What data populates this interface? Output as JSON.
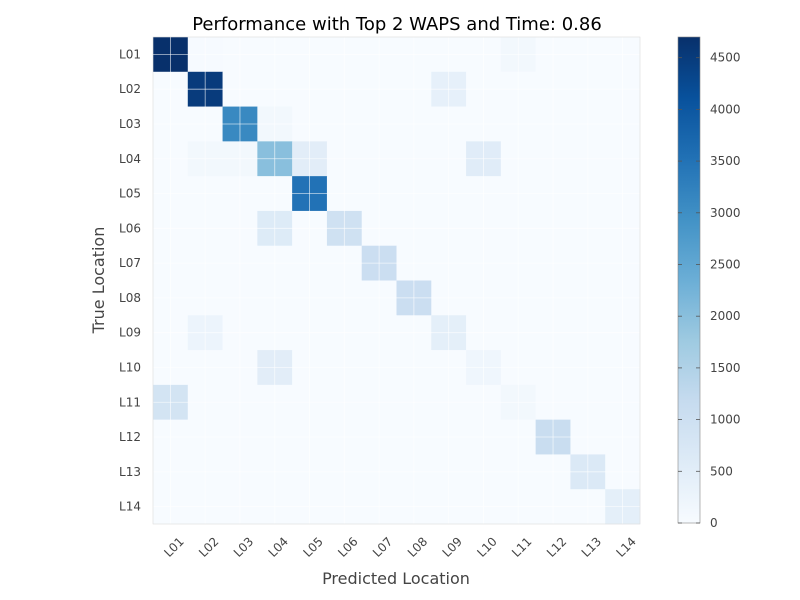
{
  "chart_data": {
    "type": "heatmap",
    "title": "Performance with Top 2 WAPS and Time: 0.86",
    "xlabel": "Predicted Location",
    "ylabel": "True Location",
    "x_categories": [
      "L01",
      "L02",
      "L03",
      "L04",
      "L05",
      "L06",
      "L07",
      "L08",
      "L09",
      "L10",
      "L11",
      "L12",
      "L13",
      "L14"
    ],
    "y_categories": [
      "L01",
      "L02",
      "L03",
      "L04",
      "L05",
      "L06",
      "L07",
      "L08",
      "L09",
      "L10",
      "L11",
      "L12",
      "L13",
      "L14"
    ],
    "values": [
      [
        4700,
        20,
        10,
        10,
        10,
        10,
        10,
        10,
        10,
        10,
        120,
        10,
        10,
        10
      ],
      [
        10,
        4500,
        10,
        10,
        10,
        10,
        10,
        10,
        400,
        10,
        10,
        10,
        10,
        10
      ],
      [
        10,
        10,
        3100,
        120,
        10,
        10,
        10,
        10,
        10,
        10,
        10,
        10,
        10,
        10
      ],
      [
        10,
        120,
        120,
        2000,
        500,
        10,
        10,
        10,
        10,
        550,
        10,
        10,
        10,
        10
      ],
      [
        10,
        10,
        10,
        10,
        3500,
        10,
        10,
        10,
        10,
        10,
        10,
        10,
        10,
        10
      ],
      [
        10,
        10,
        10,
        600,
        10,
        950,
        10,
        10,
        10,
        10,
        10,
        10,
        10,
        10
      ],
      [
        10,
        10,
        10,
        10,
        10,
        10,
        1050,
        10,
        10,
        10,
        10,
        10,
        10,
        10
      ],
      [
        10,
        10,
        10,
        10,
        10,
        10,
        10,
        1050,
        10,
        10,
        10,
        10,
        10,
        10
      ],
      [
        10,
        250,
        10,
        10,
        10,
        10,
        10,
        10,
        450,
        10,
        10,
        10,
        10,
        10
      ],
      [
        10,
        10,
        10,
        500,
        10,
        10,
        10,
        10,
        10,
        180,
        10,
        10,
        10,
        10
      ],
      [
        850,
        10,
        10,
        10,
        10,
        10,
        10,
        10,
        10,
        10,
        120,
        10,
        10,
        10
      ],
      [
        10,
        10,
        10,
        10,
        10,
        10,
        10,
        10,
        10,
        10,
        10,
        1100,
        10,
        10
      ],
      [
        10,
        10,
        10,
        10,
        10,
        10,
        10,
        10,
        10,
        10,
        10,
        10,
        650,
        10
      ],
      [
        10,
        10,
        10,
        10,
        10,
        10,
        10,
        10,
        10,
        10,
        10,
        10,
        10,
        450
      ]
    ],
    "colorbar": {
      "min": 0,
      "max": 4700,
      "ticks": [
        0,
        500,
        1000,
        1500,
        2000,
        2500,
        3000,
        3500,
        4000,
        4500
      ],
      "colormap": "Blues",
      "color_low": "#f7fbff",
      "color_high": "#08306b"
    },
    "grid": true,
    "gridline_color": "#ffffff"
  }
}
